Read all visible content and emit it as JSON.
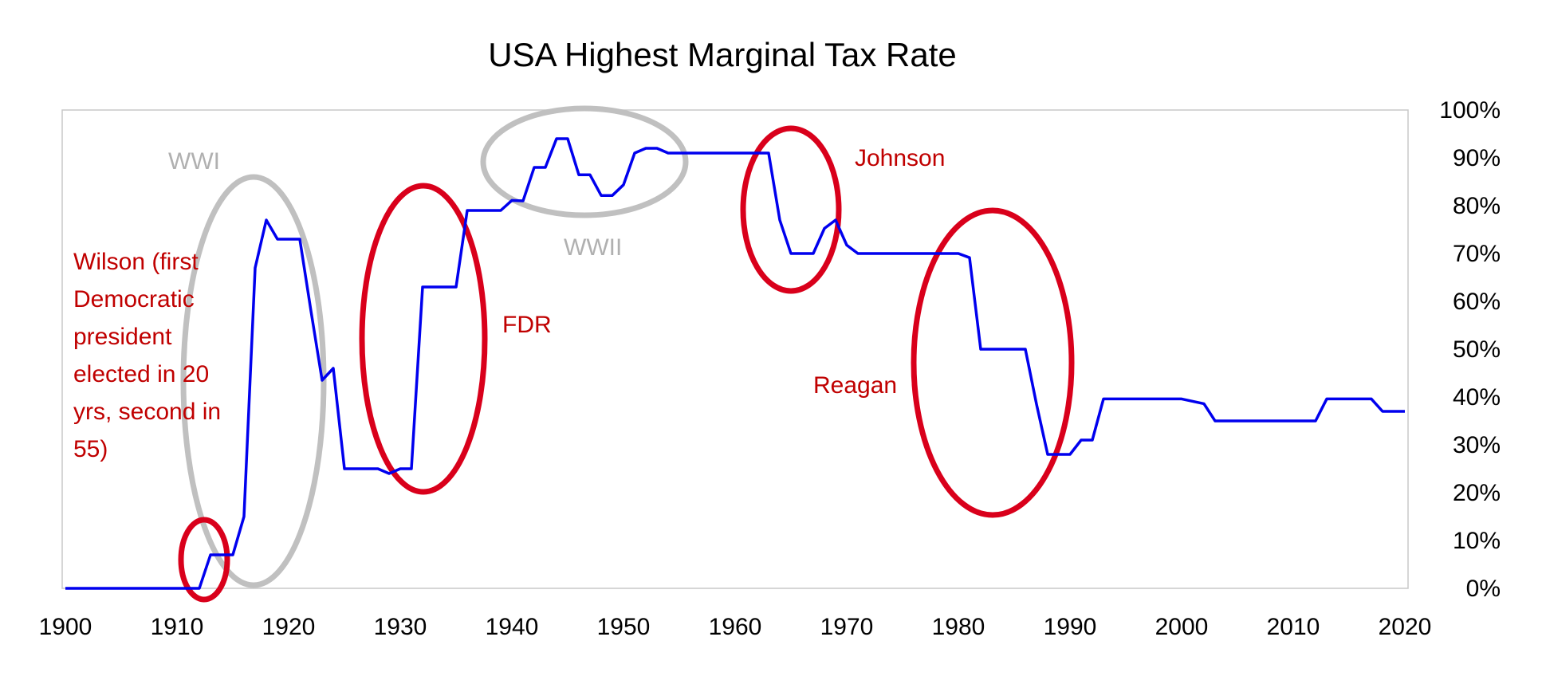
{
  "chart_data": {
    "type": "line",
    "title": "USA Highest Marginal Tax Rate",
    "xlabel": "",
    "ylabel": "",
    "xlim": [
      1900,
      2021
    ],
    "ylim": [
      0,
      100
    ],
    "x_ticks": [
      1900,
      1910,
      1920,
      1930,
      1940,
      1950,
      1960,
      1970,
      1980,
      1990,
      2000,
      2010,
      2020
    ],
    "y_ticks": [
      "0%",
      "10%",
      "20%",
      "30%",
      "40%",
      "50%",
      "60%",
      "70%",
      "80%",
      "90%",
      "100%"
    ],
    "y_axis_side": "right",
    "grid": false,
    "series_color": "#0000ee",
    "series": [
      {
        "x": [
          1900,
          1912,
          1913,
          1914,
          1915,
          1916,
          1917,
          1918,
          1919,
          1920,
          1921,
          1922,
          1923,
          1924,
          1925,
          1926,
          1927,
          1928,
          1929,
          1930,
          1931,
          1932,
          1933,
          1934,
          1935,
          1936,
          1937,
          1938,
          1939,
          1940,
          1941,
          1942,
          1943,
          1944,
          1945,
          1946,
          1947,
          1948,
          1949,
          1950,
          1951,
          1952,
          1953,
          1954,
          1955,
          1956,
          1957,
          1958,
          1959,
          1960,
          1961,
          1962,
          1963,
          1964,
          1965,
          1966,
          1967,
          1968,
          1969,
          1970,
          1971,
          1972,
          1973,
          1974,
          1975,
          1976,
          1977,
          1978,
          1979,
          1980,
          1981,
          1982,
          1983,
          1984,
          1985,
          1986,
          1987,
          1988,
          1989,
          1990,
          1991,
          1992,
          1993,
          1994,
          1995,
          1996,
          1997,
          1998,
          1999,
          2000,
          2001,
          2002,
          2003,
          2004,
          2005,
          2006,
          2007,
          2008,
          2009,
          2010,
          2011,
          2012,
          2013,
          2014,
          2015,
          2016,
          2017,
          2018,
          2019,
          2020
        ],
        "values": [
          0,
          0,
          7,
          7,
          7,
          15,
          67,
          77,
          73,
          73,
          73,
          58,
          43.5,
          46,
          25,
          25,
          25,
          25,
          24,
          25,
          25,
          63,
          63,
          63,
          63,
          79,
          79,
          79,
          79,
          81.1,
          81,
          88,
          88,
          94,
          94,
          86.45,
          86.45,
          82.13,
          82.13,
          84.36,
          91,
          92,
          92,
          91,
          91,
          91,
          91,
          91,
          91,
          91,
          91,
          91,
          91,
          77,
          70,
          70,
          70,
          75.25,
          77,
          71.75,
          70,
          70,
          70,
          70,
          70,
          70,
          70,
          70,
          70,
          70,
          69.13,
          50,
          50,
          50,
          50,
          50,
          38.5,
          28,
          28,
          28,
          31,
          31,
          39.6,
          39.6,
          39.6,
          39.6,
          39.6,
          39.6,
          39.6,
          39.6,
          39.1,
          38.6,
          35,
          35,
          35,
          35,
          35,
          35,
          35,
          35,
          35,
          35,
          39.6,
          39.6,
          39.6,
          39.6,
          39.6,
          37,
          37,
          37
        ]
      }
    ],
    "annotations": [
      {
        "text": "WWI",
        "color": "gray"
      },
      {
        "text": "WWII",
        "color": "gray"
      },
      {
        "text": "Wilson (first Democratic president elected in 20 yrs, second in 55)",
        "lines": [
          "Wilson (first",
          "Democratic",
          "president",
          "elected in 20",
          "yrs, second in",
          "55)"
        ],
        "color": "red"
      },
      {
        "text": "FDR",
        "color": "red"
      },
      {
        "text": "Johnson",
        "color": "red"
      },
      {
        "text": "Reagan",
        "color": "red"
      }
    ],
    "highlight_colors": {
      "red": "#d9001b",
      "gray": "#c0c0c0",
      "red_text": "#c00000",
      "gray_text": "#b0b0b0"
    }
  }
}
